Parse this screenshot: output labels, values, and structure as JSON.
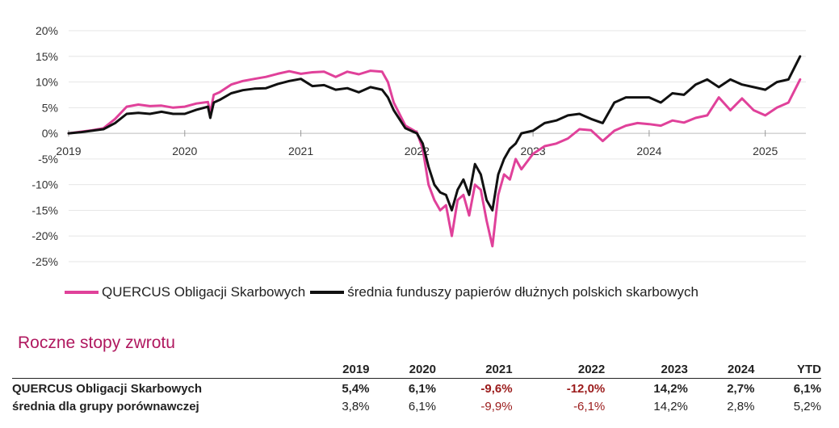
{
  "colors": {
    "fund": "#e0419a",
    "peer": "#111111",
    "title": "#b0185f",
    "negative": "#9b1b1b",
    "grid": "#e6e6e6"
  },
  "chart_data": {
    "type": "line",
    "title": "",
    "xlabel": "",
    "ylabel": "",
    "ylim": [
      -25,
      20
    ],
    "xlim": [
      2019.0,
      2025.35
    ],
    "y_ticks": [
      20,
      15,
      10,
      5,
      0,
      -5,
      -10,
      -15,
      -20,
      -25
    ],
    "y_tick_labels": [
      "20%",
      "15%",
      "10%",
      "5%",
      "0%",
      "-5%",
      "-10%",
      "-15%",
      "-20%",
      "-25%"
    ],
    "x_ticks": [
      2019,
      2020,
      2021,
      2022,
      2023,
      2024,
      2025
    ],
    "x_tick_labels": [
      "2019",
      "2020",
      "2021",
      "2022",
      "2023",
      "2024",
      "2025"
    ],
    "grid": true,
    "series": [
      {
        "name": "QUERCUS Obligacji Skarbowych",
        "color": "#e0419a",
        "x": [
          2019.0,
          2019.1,
          2019.2,
          2019.3,
          2019.4,
          2019.5,
          2019.6,
          2019.7,
          2019.8,
          2019.9,
          2020.0,
          2020.1,
          2020.2,
          2020.22,
          2020.25,
          2020.3,
          2020.4,
          2020.5,
          2020.6,
          2020.7,
          2020.8,
          2020.9,
          2021.0,
          2021.1,
          2021.2,
          2021.3,
          2021.4,
          2021.5,
          2021.6,
          2021.7,
          2021.75,
          2021.8,
          2021.9,
          2022.0,
          2022.05,
          2022.1,
          2022.15,
          2022.2,
          2022.25,
          2022.3,
          2022.35,
          2022.4,
          2022.45,
          2022.5,
          2022.55,
          2022.6,
          2022.65,
          2022.7,
          2022.75,
          2022.8,
          2022.85,
          2022.9,
          2023.0,
          2023.1,
          2023.2,
          2023.3,
          2023.4,
          2023.5,
          2023.6,
          2023.7,
          2023.8,
          2023.9,
          2024.0,
          2024.1,
          2024.2,
          2024.3,
          2024.4,
          2024.5,
          2024.6,
          2024.7,
          2024.8,
          2024.9,
          2025.0,
          2025.1,
          2025.2,
          2025.3
        ],
        "y": [
          0,
          0.3,
          0.6,
          1.0,
          2.8,
          5.2,
          5.6,
          5.3,
          5.4,
          5.0,
          5.2,
          5.8,
          6.1,
          4.0,
          7.5,
          8.0,
          9.5,
          10.2,
          10.6,
          11.0,
          11.6,
          12.1,
          11.6,
          11.9,
          12.0,
          11.0,
          12.0,
          11.5,
          12.2,
          12.0,
          10.0,
          6.0,
          1.5,
          0.2,
          -3.0,
          -10.0,
          -13.0,
          -15.0,
          -14.0,
          -20.0,
          -13.0,
          -12.0,
          -16.0,
          -10.0,
          -11.0,
          -17.0,
          -22.0,
          -12.0,
          -8.0,
          -9.0,
          -5.0,
          -7.0,
          -4.0,
          -2.5,
          -2.0,
          -1.0,
          0.8,
          0.6,
          -1.5,
          0.5,
          1.5,
          2.0,
          1.8,
          1.5,
          2.5,
          2.1,
          3.0,
          3.5,
          7.0,
          4.5,
          6.8,
          4.5,
          3.5,
          5.0,
          6.0,
          10.5
        ]
      },
      {
        "name": "średnia funduszy papierów dłużnych polskich skarbowych",
        "color": "#111111",
        "x": [
          2019.0,
          2019.1,
          2019.2,
          2019.3,
          2019.4,
          2019.5,
          2019.6,
          2019.7,
          2019.8,
          2019.9,
          2020.0,
          2020.1,
          2020.2,
          2020.22,
          2020.25,
          2020.3,
          2020.4,
          2020.5,
          2020.6,
          2020.7,
          2020.8,
          2020.9,
          2021.0,
          2021.1,
          2021.2,
          2021.3,
          2021.4,
          2021.5,
          2021.6,
          2021.7,
          2021.75,
          2021.8,
          2021.9,
          2022.0,
          2022.05,
          2022.1,
          2022.15,
          2022.2,
          2022.25,
          2022.3,
          2022.35,
          2022.4,
          2022.45,
          2022.5,
          2022.55,
          2022.6,
          2022.65,
          2022.7,
          2022.75,
          2022.8,
          2022.85,
          2022.9,
          2023.0,
          2023.1,
          2023.2,
          2023.3,
          2023.4,
          2023.5,
          2023.6,
          2023.7,
          2023.8,
          2023.9,
          2024.0,
          2024.1,
          2024.2,
          2024.3,
          2024.4,
          2024.5,
          2024.6,
          2024.7,
          2024.8,
          2024.9,
          2025.0,
          2025.1,
          2025.2,
          2025.3
        ],
        "y": [
          0,
          0.2,
          0.5,
          0.8,
          2.0,
          3.8,
          4.0,
          3.8,
          4.2,
          3.8,
          3.8,
          4.6,
          5.2,
          3.0,
          6.0,
          6.5,
          7.8,
          8.4,
          8.7,
          8.8,
          9.6,
          10.2,
          10.6,
          9.2,
          9.4,
          8.5,
          8.8,
          8.0,
          9.0,
          8.5,
          7.0,
          4.5,
          1.0,
          0.0,
          -2.0,
          -6.5,
          -10.0,
          -11.5,
          -12.0,
          -15.0,
          -11.0,
          -9.0,
          -12.0,
          -6.0,
          -8.0,
          -13.0,
          -15.0,
          -8.0,
          -5.0,
          -3.0,
          -2.0,
          0.0,
          0.5,
          2.0,
          2.5,
          3.5,
          3.8,
          2.8,
          2.0,
          6.0,
          7.0,
          7.0,
          7.0,
          6.0,
          7.8,
          7.5,
          9.5,
          10.5,
          9.0,
          10.5,
          9.5,
          9.0,
          8.5,
          10.0,
          10.5,
          15.0
        ]
      }
    ]
  },
  "table": {
    "title": "Roczne stopy zwrotu",
    "headers": [
      "",
      "2019",
      "2020",
      "2021",
      "2022",
      "2023",
      "2024",
      "YTD"
    ],
    "rows": [
      {
        "name": "QUERCUS Obligacji Skarbowych",
        "values": [
          "5,4%",
          "6,1%",
          "-9,6%",
          "-12,0%",
          "14,2%",
          "2,7%",
          "6,1%"
        ]
      },
      {
        "name": "średnia dla grupy porównawczej",
        "values": [
          "3,8%",
          "6,1%",
          "-9,9%",
          "-6,1%",
          "14,2%",
          "2,8%",
          "5,2%"
        ]
      }
    ]
  }
}
